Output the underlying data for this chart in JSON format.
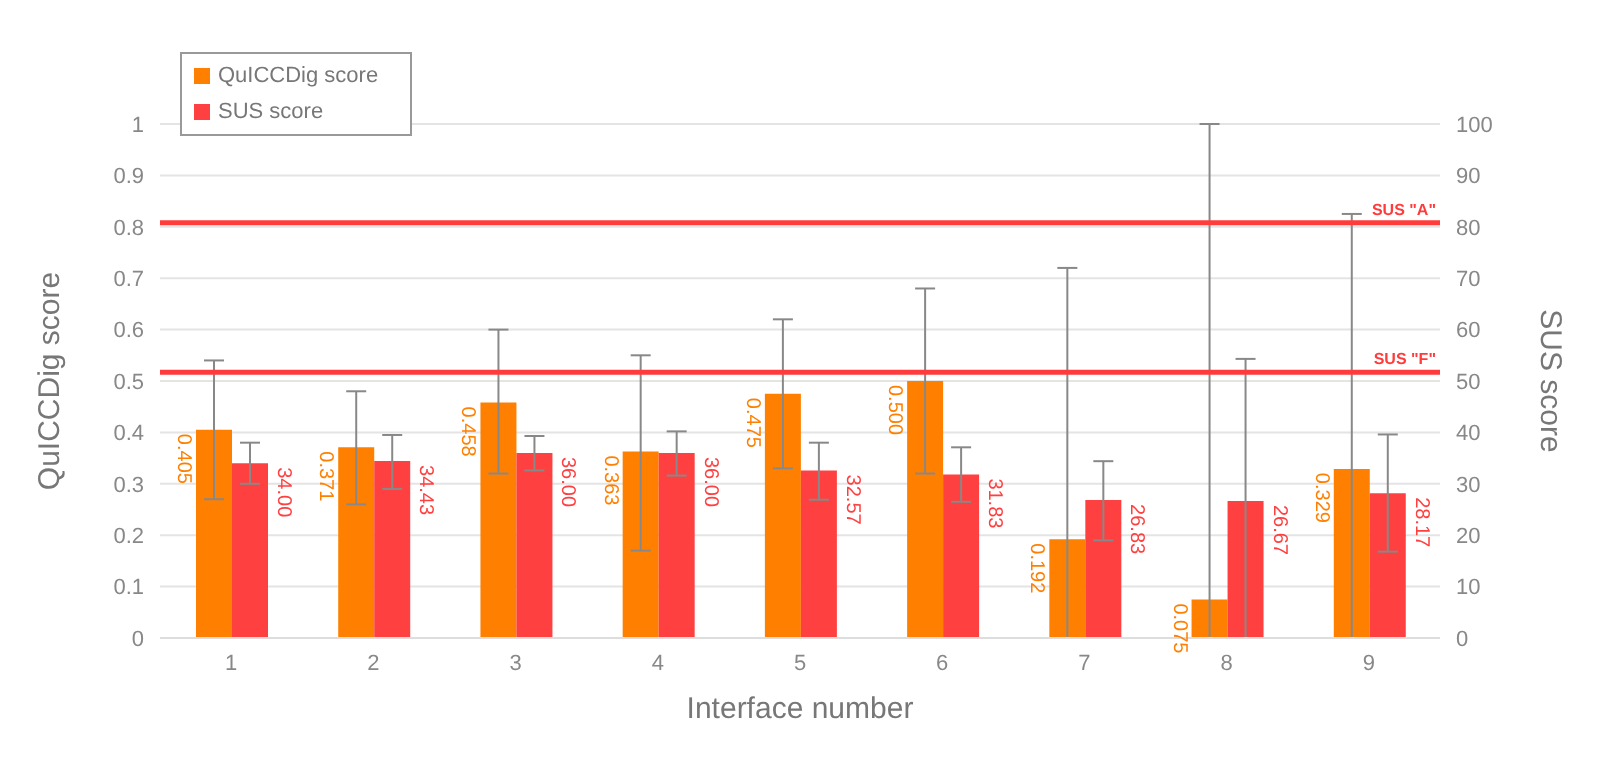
{
  "chart_data": {
    "type": "bar",
    "xlabel": "Interface number",
    "ylabel": "QuICCDig score",
    "y2label": "SUS score",
    "categories": [
      "1",
      "2",
      "3",
      "4",
      "5",
      "6",
      "7",
      "8",
      "9"
    ],
    "series": [
      {
        "name": "QuICCDig score",
        "color": "#ff8000",
        "values": [
          0.405,
          0.371,
          0.458,
          0.363,
          0.475,
          0.5,
          0.192,
          0.075,
          0.329
        ],
        "value_labels": [
          "0.405",
          "0.371",
          "0.458",
          "0.363",
          "0.475",
          "0.500",
          "0.192",
          "0.075",
          "0.329"
        ],
        "errors": [
          [
            0.27,
            0.54
          ],
          [
            0.26,
            0.48
          ],
          [
            0.32,
            0.6
          ],
          [
            0.17,
            0.55
          ],
          [
            0.33,
            0.62
          ],
          [
            0.32,
            0.68
          ],
          [
            0,
            0.72
          ],
          [
            0,
            1
          ],
          [
            0,
            0.825
          ]
        ]
      },
      {
        "name": "SUS score",
        "color": "#ff4040",
        "axis": "y2",
        "values": [
          34,
          34.43,
          36,
          36,
          32.57,
          31.83,
          26.83,
          26.67,
          28.17
        ],
        "value_labels": [
          "34.00",
          "34.43",
          "36.00",
          "36.00",
          "32.57",
          "31.83",
          "26.83",
          "26.67",
          "28.17"
        ],
        "errors": [
          [
            30,
            38
          ],
          [
            29,
            39.5
          ],
          [
            32.6,
            39.3
          ],
          [
            31.6,
            40.2
          ],
          [
            26.9,
            38
          ],
          [
            26.5,
            37.1
          ],
          [
            19,
            34.4
          ],
          [
            0,
            54.3
          ],
          [
            16.8,
            39.6
          ]
        ]
      }
    ],
    "ylim": [
      0,
      1
    ],
    "yticks": [
      0,
      0.1,
      0.2,
      0.3,
      0.4,
      0.5,
      0.6,
      0.7,
      0.8,
      0.9,
      1
    ],
    "y2lim": [
      0,
      100
    ],
    "y2ticks": [
      0,
      10,
      20,
      30,
      40,
      50,
      60,
      70,
      80,
      90,
      100
    ],
    "ref_lines": [
      {
        "axis": "y2",
        "value": 80.8,
        "label": "SUS \"A\"",
        "color": "#ff3b3b"
      },
      {
        "axis": "y2",
        "value": 51.7,
        "label": "SUS \"F\"",
        "color": "#ff3b3b"
      }
    ],
    "grid": "y",
    "legend": "top left"
  }
}
